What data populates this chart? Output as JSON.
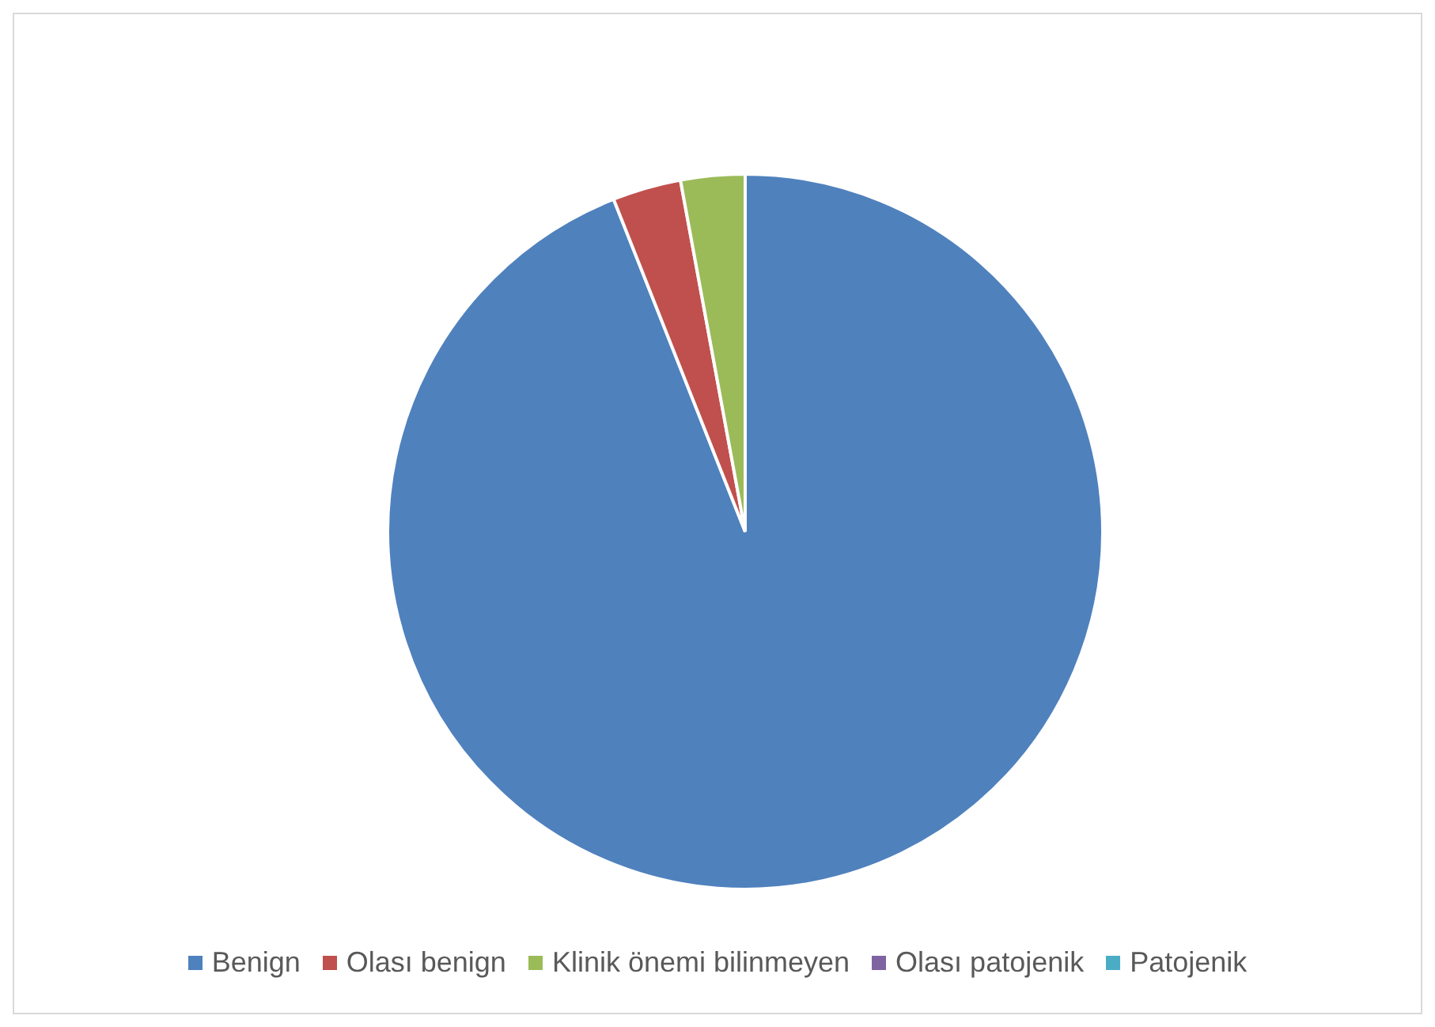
{
  "chart_data": {
    "type": "pie",
    "categories": [
      "Benign",
      "Olası benign",
      "Klinik önemi bilinmeyen",
      "Olası patojenik",
      "Patojenik"
    ],
    "values": [
      94,
      3.1,
      2.9,
      0,
      0
    ],
    "colors": [
      "#4f81bd",
      "#c0504d",
      "#9bbb59",
      "#8064a2",
      "#4bacc6"
    ],
    "legend": "bottom"
  }
}
